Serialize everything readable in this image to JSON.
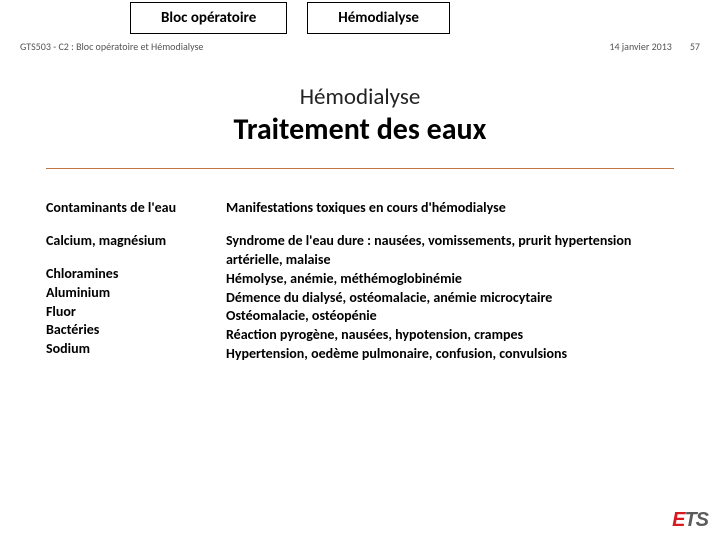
{
  "tabs": {
    "left": "Bloc opératoire",
    "right": "Hémodialyse"
  },
  "header": {
    "course": "GTS503 - C2 : Bloc opératoire et Hémodialyse",
    "date": "14 janvier 2013",
    "page": "57"
  },
  "title": {
    "sub": "Hémodialyse",
    "main": "Traitement des eaux"
  },
  "table": {
    "left_header": "Contaminants de l'eau",
    "right_header": "Manifestations toxiques en cours d'hémodialyse",
    "rows": [
      {
        "left": "Calcium, magnésium",
        "right": "Syndrome de l'eau dure : nausées, vomissements, prurit hypertension artérielle, malaise"
      },
      {
        "left": "Chloramines",
        "right": "Hémolyse, anémie, méthémoglobinémie"
      },
      {
        "left": "Aluminium",
        "right": "Démence du dialysé, ostéomalacie, anémie microcytaire"
      },
      {
        "left": "Fluor",
        "right": "Ostéomalacie, ostéopénie"
      },
      {
        "left": "Bactéries",
        "right": "Réaction pyrogène, nausées, hypotension, crampes"
      },
      {
        "left": "Sodium",
        "right": "Hypertension, oedème pulmonaire, confusion, convulsions"
      }
    ]
  },
  "logo": {
    "e": "E",
    "ts": "TS"
  },
  "colors": {
    "hr": "#c47546",
    "logo_red": "#d71920",
    "logo_dark": "#5b5b5b"
  }
}
